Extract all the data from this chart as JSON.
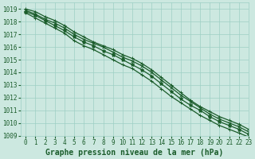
{
  "title": "",
  "xlabel": "Graphe pression niveau de la mer (hPa)",
  "ylabel": "",
  "xlim": [
    -0.5,
    23
  ],
  "ylim": [
    1009,
    1019.5
  ],
  "yticks": [
    1009,
    1010,
    1011,
    1012,
    1013,
    1014,
    1015,
    1016,
    1017,
    1018,
    1019
  ],
  "xticks": [
    0,
    1,
    2,
    3,
    4,
    5,
    6,
    7,
    8,
    9,
    10,
    11,
    12,
    13,
    14,
    15,
    16,
    17,
    18,
    19,
    20,
    21,
    22,
    23
  ],
  "bg_color": "#cce8e0",
  "grid_color": "#9ecfc4",
  "line_color": "#1a5c2a",
  "series": [
    [
      1019.0,
      1018.8,
      1018.4,
      1018.1,
      1017.7,
      1017.2,
      1016.8,
      1016.4,
      1016.1,
      1015.8,
      1015.4,
      1015.1,
      1014.7,
      1014.2,
      1013.6,
      1013.0,
      1012.4,
      1011.8,
      1011.3,
      1010.9,
      1010.5,
      1010.2,
      1009.9,
      1009.5
    ],
    [
      1018.9,
      1018.6,
      1018.2,
      1017.9,
      1017.5,
      1017.0,
      1016.6,
      1016.3,
      1016.0,
      1015.6,
      1015.2,
      1014.9,
      1014.5,
      1014.0,
      1013.4,
      1012.8,
      1012.2,
      1011.7,
      1011.2,
      1010.7,
      1010.3,
      1010.0,
      1009.7,
      1009.3
    ],
    [
      1018.8,
      1018.5,
      1018.1,
      1017.7,
      1017.3,
      1016.8,
      1016.4,
      1016.1,
      1015.7,
      1015.4,
      1015.0,
      1014.6,
      1014.2,
      1013.7,
      1013.1,
      1012.5,
      1011.9,
      1011.4,
      1011.0,
      1010.5,
      1010.1,
      1009.8,
      1009.5,
      1009.1
    ],
    [
      1018.7,
      1018.3,
      1017.9,
      1017.5,
      1017.1,
      1016.5,
      1016.1,
      1015.8,
      1015.4,
      1015.0,
      1014.6,
      1014.3,
      1013.8,
      1013.3,
      1012.7,
      1012.1,
      1011.6,
      1011.1,
      1010.6,
      1010.2,
      1009.8,
      1009.5,
      1009.2,
      1008.9
    ]
  ],
  "tick_fontsize": 5.5,
  "xlabel_fontsize": 7,
  "line_width": 0.9,
  "marker_size": 2.5,
  "marker_edge_width": 0.7
}
